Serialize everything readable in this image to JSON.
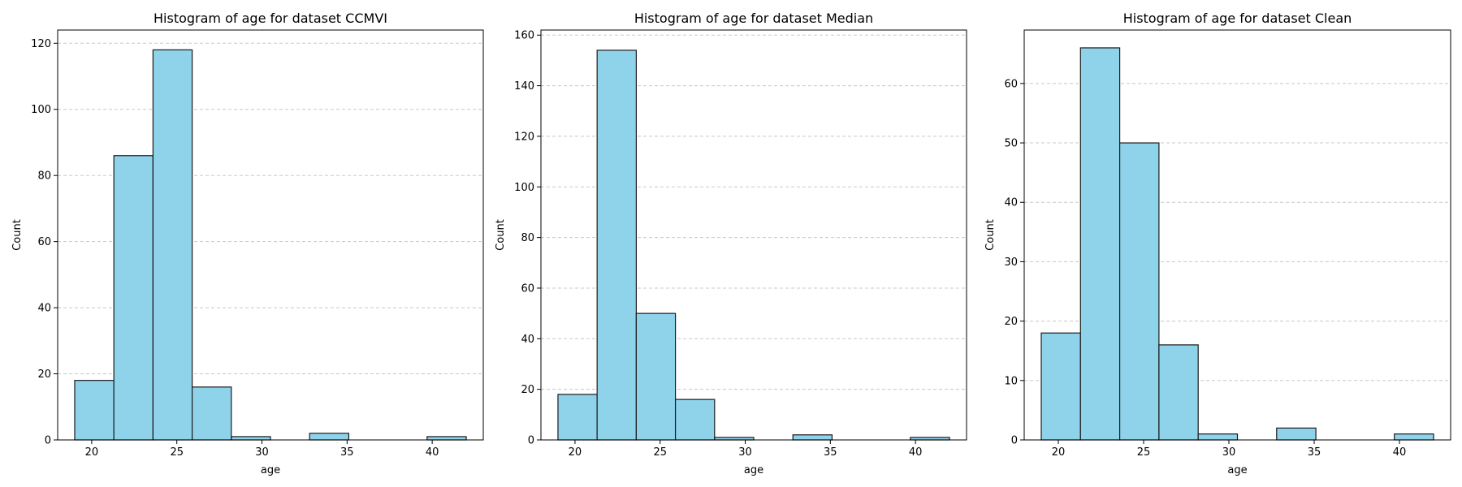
{
  "chart_data": [
    {
      "type": "bar",
      "title": "Histogram of age for dataset CCMVI",
      "xlabel": "age",
      "ylabel": "Count",
      "bin_edges": [
        19.0,
        21.3,
        23.6,
        25.9,
        28.2,
        30.5,
        32.8,
        35.1,
        37.4,
        39.7,
        42.0
      ],
      "values": [
        18,
        86,
        118,
        16,
        1,
        0,
        2,
        0,
        0,
        1
      ],
      "xlim": [
        18.0,
        43.0
      ],
      "ylim": [
        0,
        124
      ],
      "xticks": [
        20,
        25,
        30,
        35,
        40
      ],
      "yticks": [
        0,
        20,
        40,
        60,
        80,
        100,
        120
      ],
      "grid": "y-dashed",
      "bar_color": "#8fd3eb",
      "edge_color": "#1a1a1a"
    },
    {
      "type": "bar",
      "title": "Histogram of age for dataset Median",
      "xlabel": "age",
      "ylabel": "Count",
      "bin_edges": [
        19.0,
        21.3,
        23.6,
        25.9,
        28.2,
        30.5,
        32.8,
        35.1,
        37.4,
        39.7,
        42.0
      ],
      "values": [
        18,
        154,
        50,
        16,
        1,
        0,
        2,
        0,
        0,
        1
      ],
      "xlim": [
        18.0,
        43.0
      ],
      "ylim": [
        0,
        162
      ],
      "xticks": [
        20,
        25,
        30,
        35,
        40
      ],
      "yticks": [
        0,
        20,
        40,
        60,
        80,
        100,
        120,
        140,
        160
      ],
      "grid": "y-dashed",
      "bar_color": "#8fd3eb",
      "edge_color": "#1a1a1a"
    },
    {
      "type": "bar",
      "title": "Histogram of age for dataset Clean",
      "xlabel": "age",
      "ylabel": "Count",
      "bin_edges": [
        19.0,
        21.3,
        23.6,
        25.9,
        28.2,
        30.5,
        32.8,
        35.1,
        37.4,
        39.7,
        42.0
      ],
      "values": [
        18,
        66,
        50,
        16,
        1,
        0,
        2,
        0,
        0,
        1
      ],
      "xlim": [
        18.0,
        43.0
      ],
      "ylim": [
        0,
        69
      ],
      "xticks": [
        20,
        25,
        30,
        35,
        40
      ],
      "yticks": [
        0,
        10,
        20,
        30,
        40,
        50,
        60
      ],
      "grid": "y-dashed",
      "bar_color": "#8fd3eb",
      "edge_color": "#1a1a1a"
    }
  ]
}
